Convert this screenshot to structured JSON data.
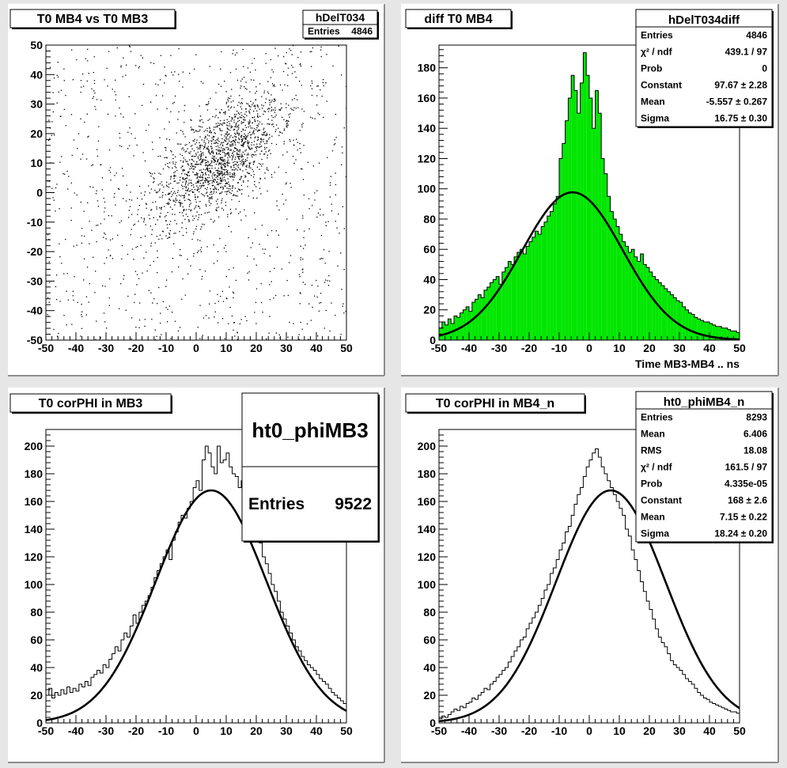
{
  "chart_data": [
    {
      "type": "scatter",
      "title": "T0 MB4 vs T0 MB3",
      "xlim": [
        -50,
        50
      ],
      "ylim": [
        -50,
        50
      ],
      "x_ticks": [
        -50,
        -40,
        -30,
        -20,
        -10,
        0,
        10,
        20,
        30,
        40,
        50
      ],
      "y_ticks": [
        -50,
        -40,
        -30,
        -20,
        -10,
        0,
        10,
        20,
        30,
        40,
        50
      ],
      "stats_box": {
        "title": "hDelT034",
        "rows": [
          {
            "label": "Entries",
            "value": "4846"
          }
        ]
      },
      "point_cloud": {
        "count_drawn": 2400,
        "core_fraction": 0.62,
        "core_center": [
          8,
          12
        ],
        "core_sigma_x": 11,
        "core_sigma_y": 12,
        "core_correlation": 0.65
      }
    },
    {
      "type": "bar",
      "title": "diff T0 MB4",
      "xlabel": "Time MB3-MB4  ..  ns",
      "xlim": [
        -50,
        50
      ],
      "ylim": [
        0,
        195
      ],
      "x_ticks": [
        -50,
        -40,
        -30,
        -20,
        -10,
        0,
        10,
        20,
        30,
        40,
        50
      ],
      "y_ticks": [
        0,
        20,
        40,
        60,
        80,
        100,
        120,
        140,
        160,
        180
      ],
      "bin_width": 1,
      "fill_color": "#00e600",
      "values": [
        8,
        12,
        10,
        14,
        11,
        16,
        15,
        18,
        20,
        22,
        19,
        25,
        27,
        30,
        28,
        33,
        35,
        38,
        40,
        42,
        37,
        45,
        48,
        52,
        50,
        55,
        58,
        60,
        57,
        62,
        65,
        68,
        72,
        70,
        75,
        78,
        82,
        85,
        90,
        95,
        120,
        130,
        145,
        160,
        175,
        165,
        150,
        170,
        190,
        175,
        160,
        140,
        165,
        150,
        120,
        110,
        95,
        85,
        80,
        75,
        70,
        65,
        62,
        58,
        60,
        55,
        52,
        57,
        50,
        48,
        45,
        42,
        40,
        38,
        36,
        34,
        32,
        30,
        28,
        26,
        25,
        22,
        20,
        18,
        17,
        15,
        14,
        13,
        12,
        12,
        11,
        10,
        9,
        9,
        8,
        8,
        7,
        6,
        6,
        5
      ],
      "fit": {
        "constant": 97.67,
        "mean": -5.557,
        "sigma": 16.75
      },
      "stats_box": {
        "title": "hDelT034diff",
        "rows": [
          {
            "label": "Entries",
            "value": "4846"
          },
          {
            "label": "χ² / ndf",
            "value": "439.1 / 97"
          },
          {
            "label": "Prob",
            "value": "0"
          },
          {
            "label": "Constant",
            "value": "97.67 ± 2.28"
          },
          {
            "label": "Mean",
            "value": "-5.557 ± 0.267"
          },
          {
            "label": "Sigma",
            "value": "16.75 ± 0.30"
          }
        ]
      }
    },
    {
      "type": "bar",
      "title": "T0 corPHI in MB3",
      "xlim": [
        -50,
        50
      ],
      "ylim": [
        0,
        212
      ],
      "x_ticks": [
        -50,
        -40,
        -30,
        -20,
        -10,
        0,
        10,
        20,
        30,
        40,
        50
      ],
      "y_ticks": [
        0,
        20,
        40,
        60,
        80,
        100,
        120,
        140,
        160,
        180,
        200
      ],
      "bin_width": 1,
      "fill_color": "none",
      "values": [
        20,
        25,
        18,
        22,
        20,
        24,
        21,
        26,
        22,
        25,
        23,
        28,
        26,
        30,
        27,
        33,
        35,
        38,
        36,
        42,
        40,
        46,
        50,
        55,
        52,
        60,
        65,
        62,
        70,
        78,
        72,
        80,
        85,
        88,
        92,
        98,
        105,
        110,
        115,
        120,
        125,
        118,
        132,
        138,
        145,
        150,
        148,
        155,
        160,
        170,
        175,
        168,
        190,
        200,
        195,
        185,
        180,
        200,
        188,
        190,
        195,
        185,
        180,
        178,
        170,
        175,
        165,
        160,
        150,
        145,
        138,
        130,
        120,
        115,
        108,
        100,
        95,
        88,
        80,
        75,
        70,
        65,
        60,
        55,
        52,
        48,
        45,
        42,
        40,
        38,
        35,
        32,
        30,
        28,
        25,
        22,
        20,
        18,
        16,
        14
      ],
      "fit": {
        "constant": 168,
        "mean": 5,
        "sigma": 18.5
      },
      "stats_box": {
        "title": "ht0_phiMB3",
        "rows": [
          {
            "label": "Entries",
            "value": "9522"
          }
        ]
      }
    },
    {
      "type": "bar",
      "title": "T0 corPHI in MB4_n",
      "xlim": [
        -50,
        50
      ],
      "ylim": [
        0,
        212
      ],
      "x_ticks": [
        -50,
        -40,
        -30,
        -20,
        -10,
        0,
        10,
        20,
        30,
        40,
        50
      ],
      "y_ticks": [
        0,
        20,
        40,
        60,
        80,
        100,
        120,
        140,
        160,
        180,
        200
      ],
      "bin_width": 1,
      "fill_color": "none",
      "values": [
        3,
        5,
        4,
        6,
        8,
        10,
        9,
        12,
        11,
        14,
        15,
        18,
        17,
        20,
        22,
        25,
        24,
        28,
        30,
        33,
        35,
        38,
        40,
        44,
        48,
        52,
        55,
        60,
        62,
        68,
        72,
        76,
        80,
        85,
        90,
        96,
        100,
        108,
        112,
        118,
        125,
        130,
        138,
        142,
        150,
        158,
        165,
        170,
        178,
        185,
        190,
        195,
        198,
        192,
        185,
        180,
        175,
        170,
        165,
        160,
        155,
        150,
        140,
        135,
        125,
        118,
        110,
        102,
        95,
        88,
        82,
        75,
        68,
        62,
        58,
        55,
        50,
        45,
        42,
        40,
        38,
        35,
        32,
        30,
        28,
        25,
        22,
        20,
        18,
        17,
        15,
        14,
        13,
        12,
        11,
        10,
        9,
        8,
        8,
        7
      ],
      "fit": {
        "constant": 168,
        "mean": 7.15,
        "sigma": 18.24
      },
      "stats_box": {
        "title": "ht0_phiMB4_n",
        "rows": [
          {
            "label": "Entries",
            "value": "8293"
          },
          {
            "label": "Mean",
            "value": "6.406"
          },
          {
            "label": "RMS",
            "value": "18.08"
          },
          {
            "label": "χ² / ndf",
            "value": "161.5 / 97"
          },
          {
            "label": "Prob",
            "value": "4.335e-05"
          },
          {
            "label": "Constant",
            "value": "168 ± 2.6"
          },
          {
            "label": "Mean",
            "value": "7.15 ± 0.22"
          },
          {
            "label": "Sigma",
            "value": "18.24 ± 0.20"
          }
        ]
      }
    }
  ],
  "colors": {
    "canvas_bg": "#e6e6e6",
    "pad_bg": "#ffffff",
    "frame": "#000000",
    "hist_fill": "#00e600",
    "fit_line": "#000000"
  }
}
